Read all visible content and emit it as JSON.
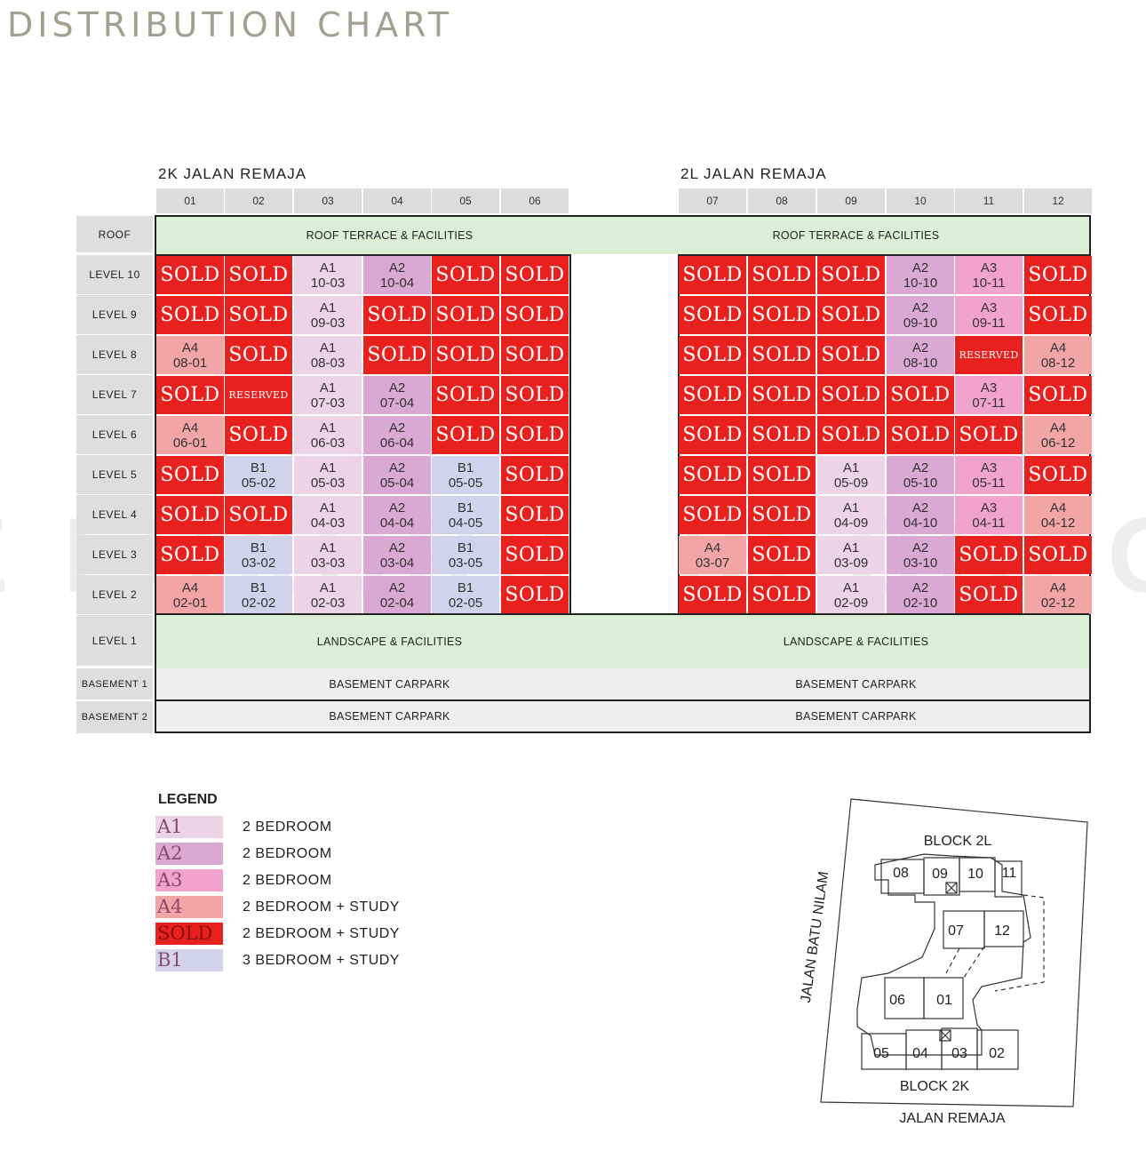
{
  "title": "DISTRIBUTION CHART",
  "watermark": "THE LUXURIOUS COLONY",
  "colors": {
    "A1": "#ecd3e6",
    "A2": "#d9a9d3",
    "A3": "#f2a3cd",
    "A4": "#f3a5a5",
    "SOLD": "#e8211f",
    "B1": "#d2d2ec",
    "RESERVED": "#e8211f"
  },
  "blocks": [
    {
      "title": "2K JALAN REMAJA",
      "columns": [
        "01",
        "02",
        "03",
        "04",
        "05",
        "06"
      ]
    },
    {
      "title": "2L JALAN REMAJA",
      "columns": [
        "07",
        "08",
        "09",
        "10",
        "11",
        "12"
      ]
    }
  ],
  "row_labels": {
    "roof": "ROOF",
    "levels": [
      "LEVEL 10",
      "LEVEL 9",
      "LEVEL 8",
      "LEVEL 7",
      "LEVEL 6",
      "LEVEL 5",
      "LEVEL 4",
      "LEVEL 3",
      "LEVEL 2"
    ],
    "level1": "LEVEL 1",
    "basement1": "BASEMENT 1",
    "basement2": "BASEMENT 2"
  },
  "bands": {
    "roof": "ROOF TERRACE & FACILITIES",
    "level1": "LANDSCAPE & FACILITIES",
    "basement": "BASEMENT CARPARK"
  },
  "grid": [
    [
      [
        "SOLD",
        ""
      ],
      [
        "SOLD",
        ""
      ],
      [
        "A1",
        "10-03"
      ],
      [
        "A2",
        "10-04"
      ],
      [
        "SOLD",
        ""
      ],
      [
        "SOLD",
        ""
      ],
      [
        "SOLD",
        ""
      ],
      [
        "SOLD",
        ""
      ],
      [
        "SOLD",
        ""
      ],
      [
        "A2",
        "10-10"
      ],
      [
        "A3",
        "10-11"
      ],
      [
        "SOLD",
        ""
      ]
    ],
    [
      [
        "SOLD",
        ""
      ],
      [
        "SOLD",
        ""
      ],
      [
        "A1",
        "09-03"
      ],
      [
        "SOLD",
        ""
      ],
      [
        "SOLD",
        ""
      ],
      [
        "SOLD",
        ""
      ],
      [
        "SOLD",
        ""
      ],
      [
        "SOLD",
        ""
      ],
      [
        "SOLD",
        ""
      ],
      [
        "A2",
        "09-10"
      ],
      [
        "A3",
        "09-11"
      ],
      [
        "SOLD",
        ""
      ]
    ],
    [
      [
        "A4",
        "08-01"
      ],
      [
        "SOLD",
        ""
      ],
      [
        "A1",
        "08-03"
      ],
      [
        "SOLD",
        ""
      ],
      [
        "SOLD",
        ""
      ],
      [
        "SOLD",
        ""
      ],
      [
        "SOLD",
        ""
      ],
      [
        "SOLD",
        ""
      ],
      [
        "SOLD",
        ""
      ],
      [
        "A2",
        "08-10"
      ],
      [
        "RESERVED",
        ""
      ],
      [
        "A4",
        "08-12"
      ]
    ],
    [
      [
        "SOLD",
        ""
      ],
      [
        "RESERVED",
        ""
      ],
      [
        "A1",
        "07-03"
      ],
      [
        "A2",
        "07-04"
      ],
      [
        "SOLD",
        ""
      ],
      [
        "SOLD",
        ""
      ],
      [
        "SOLD",
        ""
      ],
      [
        "SOLD",
        ""
      ],
      [
        "SOLD",
        ""
      ],
      [
        "SOLD",
        ""
      ],
      [
        "A3",
        "07-11"
      ],
      [
        "SOLD",
        ""
      ]
    ],
    [
      [
        "A4",
        "06-01"
      ],
      [
        "SOLD",
        ""
      ],
      [
        "A1",
        "06-03"
      ],
      [
        "A2",
        "06-04"
      ],
      [
        "SOLD",
        ""
      ],
      [
        "SOLD",
        ""
      ],
      [
        "SOLD",
        ""
      ],
      [
        "SOLD",
        ""
      ],
      [
        "SOLD",
        ""
      ],
      [
        "SOLD",
        ""
      ],
      [
        "SOLD",
        ""
      ],
      [
        "A4",
        "06-12"
      ]
    ],
    [
      [
        "SOLD",
        ""
      ],
      [
        "B1",
        "05-02"
      ],
      [
        "A1",
        "05-03"
      ],
      [
        "A2",
        "05-04"
      ],
      [
        "B1",
        "05-05"
      ],
      [
        "SOLD",
        ""
      ],
      [
        "SOLD",
        ""
      ],
      [
        "SOLD",
        ""
      ],
      [
        "A1",
        "05-09"
      ],
      [
        "A2",
        "05-10"
      ],
      [
        "A3",
        "05-11"
      ],
      [
        "SOLD",
        ""
      ]
    ],
    [
      [
        "SOLD",
        ""
      ],
      [
        "SOLD",
        ""
      ],
      [
        "A1",
        "04-03"
      ],
      [
        "A2",
        "04-04"
      ],
      [
        "B1",
        "04-05"
      ],
      [
        "SOLD",
        ""
      ],
      [
        "SOLD",
        ""
      ],
      [
        "SOLD",
        ""
      ],
      [
        "A1",
        "04-09"
      ],
      [
        "A2",
        "04-10"
      ],
      [
        "A3",
        "04-11"
      ],
      [
        "A4",
        "04-12"
      ]
    ],
    [
      [
        "SOLD",
        ""
      ],
      [
        "B1",
        "03-02"
      ],
      [
        "A1",
        "03-03"
      ],
      [
        "A2",
        "03-04"
      ],
      [
        "B1",
        "03-05"
      ],
      [
        "SOLD",
        ""
      ],
      [
        "A4",
        "03-07"
      ],
      [
        "SOLD",
        ""
      ],
      [
        "A1",
        "03-09"
      ],
      [
        "A2",
        "03-10"
      ],
      [
        "SOLD",
        ""
      ],
      [
        "SOLD",
        ""
      ]
    ],
    [
      [
        "A4",
        "02-01"
      ],
      [
        "B1",
        "02-02"
      ],
      [
        "A1",
        "02-03"
      ],
      [
        "A2",
        "02-04"
      ],
      [
        "B1",
        "02-05"
      ],
      [
        "SOLD",
        ""
      ],
      [
        "SOLD",
        ""
      ],
      [
        "SOLD",
        ""
      ],
      [
        "A1",
        "02-09"
      ],
      [
        "A2",
        "02-10"
      ],
      [
        "SOLD",
        ""
      ],
      [
        "A4",
        "02-12"
      ]
    ]
  ],
  "legend": {
    "title": "LEGEND",
    "items": [
      {
        "code": "A1",
        "desc": "2 BEDROOM"
      },
      {
        "code": "A2",
        "desc": "2 BEDROOM"
      },
      {
        "code": "A3",
        "desc": "2 BEDROOM"
      },
      {
        "code": "A4",
        "desc": "2 BEDROOM + STUDY"
      },
      {
        "code": "SOLD",
        "desc": "2 BEDROOM + STUDY"
      },
      {
        "code": "B1",
        "desc": "3 BEDROOM + STUDY"
      }
    ]
  },
  "site_map": {
    "block_2l": "BLOCK 2L",
    "block_2k": "BLOCK 2K",
    "road_side": "JALAN BATU NILAM",
    "road_bottom": "JALAN REMAJA",
    "unit_labels": [
      "08",
      "09",
      "10",
      "11",
      "07",
      "12",
      "06",
      "01",
      "05",
      "04",
      "03",
      "02"
    ]
  }
}
